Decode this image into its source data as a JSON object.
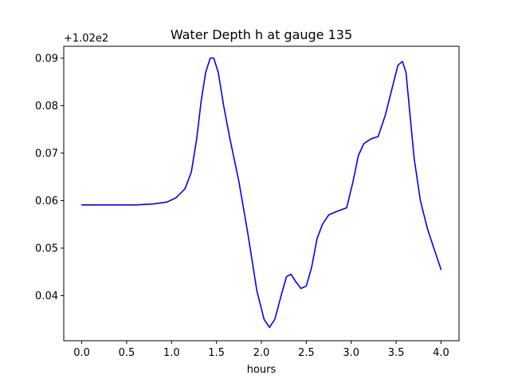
{
  "chart_data": {
    "type": "line",
    "title": "Water Depth h at gauge 135",
    "xlabel": "hours",
    "ylabel": "",
    "y_offset_label": "+1.02e2",
    "xlim": [
      -0.2,
      4.2
    ],
    "ylim": [
      0.0305,
      0.0925
    ],
    "x_ticks": [
      0.0,
      0.5,
      1.0,
      1.5,
      2.0,
      2.5,
      3.0,
      3.5,
      4.0
    ],
    "x_tick_labels": [
      "0.0",
      "0.5",
      "1.0",
      "1.5",
      "2.0",
      "2.5",
      "3.0",
      "3.5",
      "4.0"
    ],
    "y_ticks": [
      0.04,
      0.05,
      0.06,
      0.07,
      0.08,
      0.09
    ],
    "y_tick_labels": [
      "0.04",
      "0.05",
      "0.06",
      "0.07",
      "0.08",
      "0.09"
    ],
    "grid": false,
    "series": [
      {
        "color": "#0000ff",
        "points": [
          [
            0.0,
            0.0591
          ],
          [
            0.2,
            0.0591
          ],
          [
            0.4,
            0.0591
          ],
          [
            0.6,
            0.0591
          ],
          [
            0.8,
            0.0593
          ],
          [
            0.95,
            0.0597
          ],
          [
            1.05,
            0.0606
          ],
          [
            1.15,
            0.0625
          ],
          [
            1.22,
            0.066
          ],
          [
            1.28,
            0.073
          ],
          [
            1.33,
            0.081
          ],
          [
            1.38,
            0.087
          ],
          [
            1.43,
            0.09
          ],
          [
            1.47,
            0.09
          ],
          [
            1.52,
            0.087
          ],
          [
            1.58,
            0.08
          ],
          [
            1.65,
            0.073
          ],
          [
            1.75,
            0.064
          ],
          [
            1.85,
            0.053
          ],
          [
            1.95,
            0.041
          ],
          [
            2.03,
            0.035
          ],
          [
            2.09,
            0.0333
          ],
          [
            2.15,
            0.035
          ],
          [
            2.22,
            0.04
          ],
          [
            2.28,
            0.044
          ],
          [
            2.33,
            0.0445
          ],
          [
            2.38,
            0.043
          ],
          [
            2.44,
            0.0415
          ],
          [
            2.5,
            0.042
          ],
          [
            2.56,
            0.046
          ],
          [
            2.62,
            0.052
          ],
          [
            2.68,
            0.055
          ],
          [
            2.75,
            0.057
          ],
          [
            2.85,
            0.0578
          ],
          [
            2.95,
            0.0585
          ],
          [
            3.02,
            0.064
          ],
          [
            3.08,
            0.0695
          ],
          [
            3.14,
            0.072
          ],
          [
            3.22,
            0.073
          ],
          [
            3.3,
            0.0735
          ],
          [
            3.38,
            0.078
          ],
          [
            3.46,
            0.084
          ],
          [
            3.52,
            0.0885
          ],
          [
            3.57,
            0.0893
          ],
          [
            3.61,
            0.087
          ],
          [
            3.65,
            0.079
          ],
          [
            3.7,
            0.069
          ],
          [
            3.77,
            0.06
          ],
          [
            3.85,
            0.054
          ],
          [
            3.92,
            0.05
          ],
          [
            4.0,
            0.0455
          ]
        ]
      }
    ]
  }
}
